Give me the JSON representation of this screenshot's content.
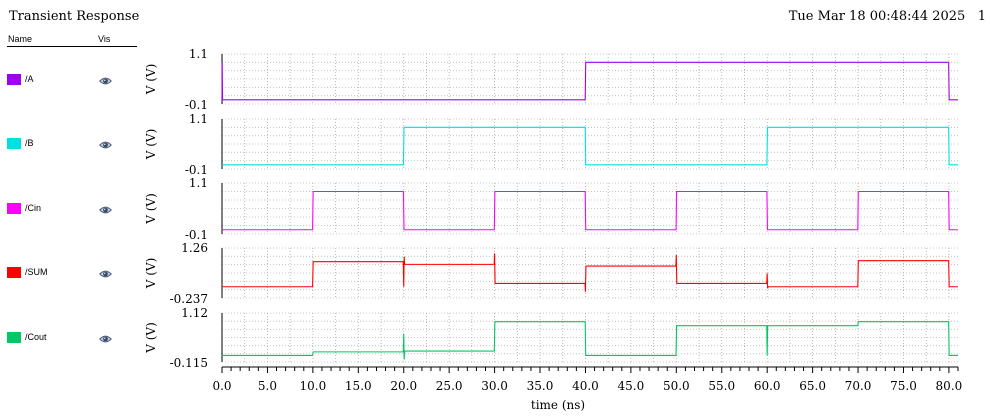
{
  "header": {
    "title": "Transient Response",
    "datestamp": "Tue Mar 18 00:48:44 2025   1"
  },
  "legend": {
    "name_header": "Name",
    "vis_header": "Vis",
    "items": [
      {
        "label": "/A",
        "color": "#a000f0",
        "icon": "eye-icon"
      },
      {
        "label": "/B",
        "color": "#00e0e0",
        "icon": "eye-icon"
      },
      {
        "label": "/Cin",
        "color": "#ff00ff",
        "icon": "eye-icon"
      },
      {
        "label": "/SUM",
        "color": "#ff0000",
        "icon": "eye-icon"
      },
      {
        "label": "/Cout",
        "color": "#00c864",
        "icon": "eye-icon"
      }
    ]
  },
  "chart_data": {
    "type": "line",
    "xlabel": "time (ns)",
    "xlim": [
      0,
      81
    ],
    "xticks": [
      "0.0",
      "5.0",
      "10.0",
      "15.0",
      "20.0",
      "25.0",
      "30.0",
      "35.0",
      "40.0",
      "45.0",
      "50.0",
      "55.0",
      "60.0",
      "65.0",
      "70.0",
      "75.0",
      "80.0"
    ],
    "grid": true,
    "panels": [
      {
        "series": "/A",
        "color": "#a000f0",
        "ylabel": "V (V)",
        "ytick_top": "1.1",
        "ytick_bottom": "-0.1",
        "ylim": [
          -0.1,
          1.1
        ],
        "x": [
          0,
          0.02,
          0.06,
          39.97,
          40.03,
          79.97,
          80.03,
          81
        ],
        "y": [
          0,
          0.9,
          0,
          0,
          0.9,
          0.9,
          0,
          0
        ]
      },
      {
        "series": "/B",
        "color": "#00e0e0",
        "ylabel": "V (V)",
        "ytick_top": "1.1",
        "ytick_bottom": "-0.1",
        "ylim": [
          -0.1,
          1.1
        ],
        "x": [
          0,
          19.97,
          20.03,
          39.97,
          40.03,
          59.97,
          60.03,
          79.97,
          80.03,
          81
        ],
        "y": [
          0,
          0,
          0.9,
          0.9,
          0,
          0,
          0.9,
          0.9,
          0,
          0
        ]
      },
      {
        "series": "/Cin",
        "color": "#ff00ff",
        "ylabel": "V (V)",
        "ytick_top": "1.1",
        "ytick_bottom": "-0.1",
        "ylim": [
          -0.1,
          1.1
        ],
        "x": [
          0,
          9.97,
          10.03,
          19.97,
          20.03,
          29.97,
          30.03,
          39.97,
          40.03,
          49.97,
          50.03,
          59.97,
          60.03,
          69.97,
          70.03,
          79.97,
          80.03,
          81
        ],
        "y": [
          0,
          0,
          0.9,
          0.9,
          0,
          0,
          0.9,
          0.9,
          0,
          0,
          0.9,
          0.9,
          0,
          0,
          0.9,
          0.9,
          0,
          0
        ]
      },
      {
        "series": "/SUM",
        "color": "#ff0000",
        "ylabel": "V (V)",
        "ytick_top": "1.26",
        "ytick_bottom": "-0.237",
        "ylim": [
          -0.237,
          1.26
        ],
        "x": [
          0,
          9.97,
          10.03,
          19.95,
          20.0,
          20.05,
          20.1,
          29.95,
          30.0,
          30.05,
          30.1,
          39.95,
          40.0,
          40.05,
          40.1,
          49.95,
          50.0,
          50.05,
          50.1,
          59.95,
          60.0,
          60.05,
          60.1,
          69.97,
          70.03,
          79.97,
          80.03,
          81
        ],
        "y": [
          0.1,
          0.1,
          0.85,
          0.85,
          0.1,
          1.0,
          0.77,
          0.77,
          1.1,
          0.2,
          0.2,
          0.2,
          -0.05,
          0.7,
          0.72,
          0.72,
          1.05,
          0.2,
          0.2,
          0.2,
          0.5,
          0.05,
          0.1,
          0.1,
          0.88,
          0.88,
          0.1,
          0.1
        ]
      },
      {
        "series": "/Cout",
        "color": "#00c864",
        "ylabel": "V (V)",
        "ytick_top": "1.12",
        "ytick_bottom": "-0.115",
        "ylim": [
          -0.115,
          1.12
        ],
        "x": [
          0,
          9.97,
          10.03,
          19.95,
          20.0,
          20.05,
          20.1,
          29.97,
          30.03,
          39.97,
          40.03,
          49.97,
          50.03,
          59.95,
          60.0,
          60.05,
          60.1,
          69.97,
          70.03,
          79.97,
          80.03,
          81
        ],
        "y": [
          0.05,
          0.05,
          0.14,
          0.14,
          0.6,
          -0.05,
          0.16,
          0.16,
          0.9,
          0.9,
          0.05,
          0.05,
          0.8,
          0.8,
          0.05,
          0.8,
          0.8,
          0.8,
          0.9,
          0.9,
          0.05,
          0.05
        ]
      }
    ]
  }
}
